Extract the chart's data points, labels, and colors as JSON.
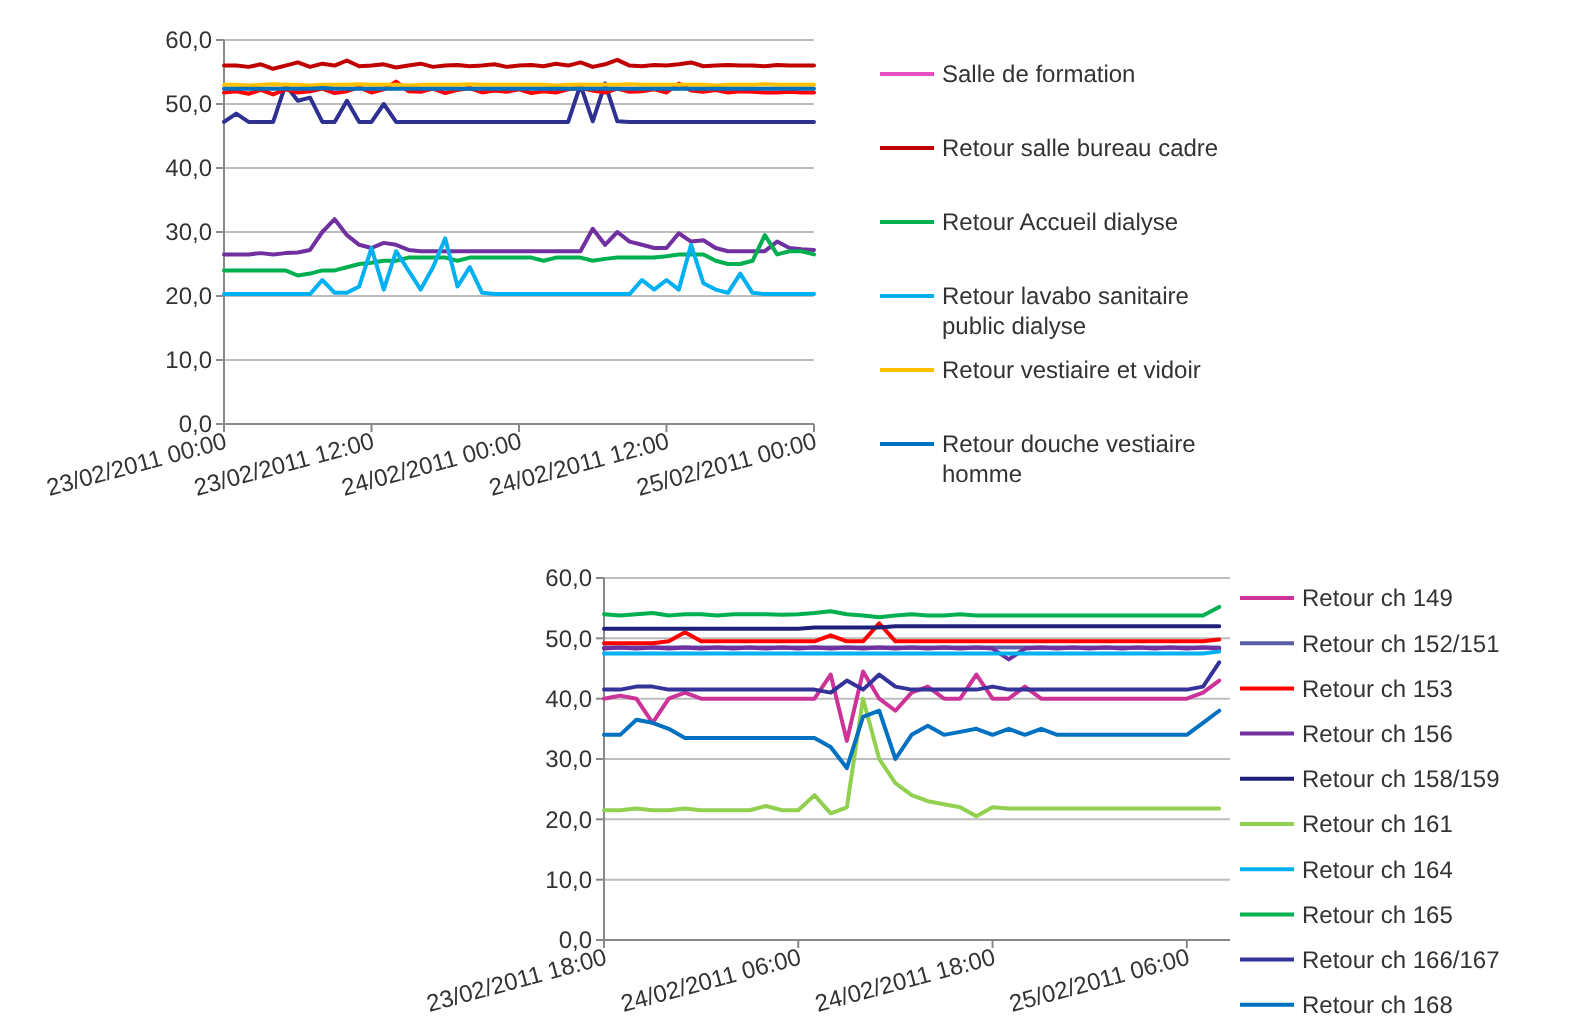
{
  "chart_data": [
    {
      "type": "line",
      "grid": "y",
      "legend": "right",
      "marker": "none",
      "line_style": "solid",
      "xlim": [
        "2011-02-23T00:00",
        "2011-02-25T00:00"
      ],
      "xticks": [
        {
          "value": "2011-02-23T00:00",
          "label": "23/02/2011 00:00"
        },
        {
          "value": "2011-02-23T12:00",
          "label": "23/02/2011 12:00"
        },
        {
          "value": "2011-02-24T00:00",
          "label": "24/02/2011 00:00"
        },
        {
          "value": "2011-02-24T12:00",
          "label": "24/02/2011 12:00"
        },
        {
          "value": "2011-02-25T00:00",
          "label": "25/02/2011 00:00"
        }
      ],
      "ylim": [
        0,
        60
      ],
      "yticks": [
        {
          "value": 0,
          "label": "0,0"
        },
        {
          "value": 10,
          "label": "10,0"
        },
        {
          "value": 20,
          "label": "20,0"
        },
        {
          "value": 30,
          "label": "30,0"
        },
        {
          "value": 40,
          "label": "40,0"
        },
        {
          "value": 50,
          "label": "50,0"
        },
        {
          "value": 60,
          "label": "60,0"
        }
      ],
      "x": [
        "2011-02-23T00:00",
        "2011-02-23T01:00",
        "2011-02-23T02:00",
        "2011-02-23T03:00",
        "2011-02-23T04:00",
        "2011-02-23T05:00",
        "2011-02-23T06:00",
        "2011-02-23T07:00",
        "2011-02-23T08:00",
        "2011-02-23T09:00",
        "2011-02-23T10:00",
        "2011-02-23T11:00",
        "2011-02-23T12:00",
        "2011-02-23T13:00",
        "2011-02-23T14:00",
        "2011-02-23T15:00",
        "2011-02-23T16:00",
        "2011-02-23T17:00",
        "2011-02-23T18:00",
        "2011-02-23T19:00",
        "2011-02-23T20:00",
        "2011-02-23T21:00",
        "2011-02-23T22:00",
        "2011-02-23T23:00",
        "2011-02-24T00:00",
        "2011-02-24T01:00",
        "2011-02-24T02:00",
        "2011-02-24T03:00",
        "2011-02-24T04:00",
        "2011-02-24T05:00",
        "2011-02-24T06:00",
        "2011-02-24T07:00",
        "2011-02-24T08:00",
        "2011-02-24T09:00",
        "2011-02-24T10:00",
        "2011-02-24T11:00",
        "2011-02-24T12:00",
        "2011-02-24T13:00",
        "2011-02-24T14:00",
        "2011-02-24T15:00",
        "2011-02-24T16:00",
        "2011-02-24T17:00",
        "2011-02-24T18:00",
        "2011-02-24T19:00",
        "2011-02-24T20:00",
        "2011-02-24T21:00",
        "2011-02-24T22:00",
        "2011-02-24T23:00",
        "2011-02-25T00:00"
      ],
      "series": [
        {
          "name": "Salle de formation",
          "color": "#e84fc4",
          "values": [
            null,
            null,
            null,
            null,
            null,
            null,
            null,
            null,
            null,
            null,
            null,
            null,
            null,
            null,
            null,
            null,
            null,
            null,
            null,
            null,
            null,
            null,
            null,
            null,
            null,
            null,
            null,
            null,
            null,
            null,
            null,
            null,
            null,
            null,
            null,
            null,
            null,
            null,
            null,
            null,
            null,
            null,
            null,
            null,
            null,
            null,
            null,
            null,
            null
          ]
        },
        {
          "color": "#2e3192",
          "values": [
            47.2,
            48.5,
            47.2,
            47.2,
            47.2,
            53,
            50.5,
            51,
            47.2,
            47.2,
            50.5,
            47.2,
            47.2,
            50,
            47.2,
            47.2,
            47.2,
            47.2,
            47.2,
            47.2,
            47.2,
            47.2,
            47.2,
            47.2,
            47.2,
            47.2,
            47.2,
            47.2,
            47.2,
            53,
            47.3,
            53.2,
            47.3,
            47.2,
            47.2,
            47.2,
            47.2,
            47.2,
            47.2,
            47.2,
            47.2,
            47.2,
            47.2,
            47.2,
            47.2,
            47.2,
            47.2,
            47.2,
            47.2
          ]
        },
        {
          "color": "#7030a0",
          "values": [
            26.5,
            26.5,
            26.5,
            26.7,
            26.5,
            26.7,
            26.8,
            27.2,
            30,
            32,
            29.5,
            28,
            27.5,
            28.3,
            28,
            27.2,
            27,
            27,
            27,
            27,
            27,
            27,
            27,
            27,
            27,
            27,
            27,
            27,
            27,
            27,
            30.5,
            28,
            30,
            28.5,
            28,
            27.5,
            27.5,
            29.8,
            28.5,
            28.7,
            27.5,
            27,
            27,
            27,
            27,
            28.5,
            27.5,
            27.3,
            27.2
          ]
        },
        {
          "color": "#ff0000",
          "values": [
            51.8,
            52,
            51.6,
            52.2,
            51.5,
            52.3,
            51.8,
            52,
            52.4,
            51.7,
            52,
            52.6,
            51.8,
            52.3,
            53.5,
            52,
            51.9,
            52.4,
            51.7,
            52.2,
            52.5,
            51.8,
            52.1,
            51.9,
            52.3,
            51.7,
            52,
            51.8,
            52.3,
            52.5,
            52.1,
            51.8,
            52.4,
            51.9,
            52,
            52.3,
            51.8,
            53.2,
            52.1,
            51.9,
            52.2,
            51.8,
            52,
            51.9,
            51.8,
            51.8,
            51.9,
            51.8,
            51.8
          ]
        },
        {
          "name": "Retour salle bureau cadre",
          "color": "#c00000",
          "values": [
            56,
            56,
            55.8,
            56.2,
            55.5,
            56,
            56.5,
            55.8,
            56.3,
            56,
            56.8,
            55.9,
            56,
            56.2,
            55.7,
            56,
            56.3,
            55.8,
            56,
            56.1,
            55.9,
            56,
            56.2,
            55.8,
            56,
            56.1,
            55.9,
            56.3,
            56,
            56.5,
            55.8,
            56.2,
            56.9,
            56,
            55.9,
            56.1,
            56,
            56.2,
            56.5,
            55.9,
            56,
            56.1,
            56,
            56,
            55.9,
            56.1,
            56,
            56,
            56
          ]
        },
        {
          "name": "Retour Accueil dialyse",
          "color": "#00b050",
          "values": [
            24,
            24,
            24,
            24,
            24,
            24,
            23.2,
            23.5,
            24,
            24,
            24.5,
            25,
            25.2,
            25.5,
            25.5,
            26,
            26,
            26,
            26,
            25.5,
            26,
            26,
            26,
            26,
            26,
            26,
            25.5,
            26,
            26,
            26,
            25.5,
            25.8,
            26,
            26,
            26,
            26,
            26.2,
            26.5,
            26.5,
            26.5,
            25.5,
            25,
            25,
            25.5,
            29.5,
            26.5,
            27,
            27,
            26.5
          ]
        },
        {
          "name": "Retour lavabo sanitaire public dialyse",
          "color": "#00b0f0",
          "values": [
            20.3,
            20.3,
            20.3,
            20.3,
            20.3,
            20.3,
            20.3,
            20.3,
            22.5,
            20.5,
            20.5,
            21.5,
            27.5,
            21,
            27,
            24,
            21,
            24.5,
            29,
            21.5,
            24.5,
            20.5,
            20.3,
            20.3,
            20.3,
            20.3,
            20.3,
            20.3,
            20.3,
            20.3,
            20.3,
            20.3,
            20.3,
            20.3,
            22.5,
            21,
            22.5,
            21,
            28,
            22,
            21,
            20.5,
            23.5,
            20.5,
            20.3,
            20.3,
            20.3,
            20.3,
            20.3
          ]
        },
        {
          "name": "Retour vestiaire et vidoir",
          "color": "#ffc000",
          "values": [
            53,
            53,
            52.9,
            53,
            53.1,
            53,
            53,
            52.9,
            53,
            53,
            53,
            53.1,
            53,
            53,
            53,
            52.9,
            53,
            53,
            53,
            53,
            53.1,
            53,
            53,
            53,
            53,
            53,
            53,
            52.9,
            53,
            53,
            53,
            53,
            53,
            53.1,
            53,
            53,
            53,
            53,
            53,
            53,
            52.9,
            53,
            53,
            53,
            53.1,
            53,
            53,
            53,
            53
          ]
        },
        {
          "name": "Retour douche vestiaire homme",
          "color": "#0070c0",
          "values": [
            52.4,
            52.4,
            52.4,
            52.4,
            52.4,
            52.4,
            52.4,
            52.4,
            52.5,
            52.4,
            52.4,
            52.4,
            52.4,
            52.4,
            52.4,
            52.4,
            52.4,
            52.4,
            52.4,
            52.4,
            52.4,
            52.4,
            52.4,
            52.4,
            52.4,
            52.4,
            52.4,
            52.4,
            52.4,
            52.4,
            52.4,
            52.4,
            52.4,
            52.4,
            52.4,
            52.4,
            52.4,
            52.4,
            52.4,
            52.4,
            52.4,
            52.4,
            52.4,
            52.4,
            52.4,
            52.4,
            52.4,
            52.4,
            52.4
          ]
        }
      ]
    },
    {
      "type": "line",
      "grid": "y",
      "legend": "right",
      "marker": "none",
      "line_style": "solid",
      "xlim": [
        "2011-02-23T18:00",
        "2011-02-25T08:40"
      ],
      "xticks": [
        {
          "value": "2011-02-23T18:00",
          "label": "23/02/2011 18:00"
        },
        {
          "value": "2011-02-24T06:00",
          "label": "24/02/2011 06:00"
        },
        {
          "value": "2011-02-24T18:00",
          "label": "24/02/2011 18:00"
        },
        {
          "value": "2011-02-25T06:00",
          "label": "25/02/2011 06:00"
        }
      ],
      "ylim": [
        0,
        60
      ],
      "yticks": [
        {
          "value": 0,
          "label": "0,0"
        },
        {
          "value": 10,
          "label": "10,0"
        },
        {
          "value": 20,
          "label": "20,0"
        },
        {
          "value": 30,
          "label": "30,0"
        },
        {
          "value": 40,
          "label": "40,0"
        },
        {
          "value": 50,
          "label": "50,0"
        },
        {
          "value": 60,
          "label": "60,0"
        }
      ],
      "x": [
        "2011-02-23T18:00",
        "2011-02-23T19:00",
        "2011-02-23T20:00",
        "2011-02-23T21:00",
        "2011-02-23T22:00",
        "2011-02-23T23:00",
        "2011-02-24T00:00",
        "2011-02-24T01:00",
        "2011-02-24T02:00",
        "2011-02-24T03:00",
        "2011-02-24T04:00",
        "2011-02-24T05:00",
        "2011-02-24T06:00",
        "2011-02-24T07:00",
        "2011-02-24T08:00",
        "2011-02-24T09:00",
        "2011-02-24T10:00",
        "2011-02-24T11:00",
        "2011-02-24T12:00",
        "2011-02-24T13:00",
        "2011-02-24T14:00",
        "2011-02-24T15:00",
        "2011-02-24T16:00",
        "2011-02-24T17:00",
        "2011-02-24T18:00",
        "2011-02-24T19:00",
        "2011-02-24T20:00",
        "2011-02-24T21:00",
        "2011-02-24T22:00",
        "2011-02-24T23:00",
        "2011-02-25T00:00",
        "2011-02-25T01:00",
        "2011-02-25T02:00",
        "2011-02-25T03:00",
        "2011-02-25T04:00",
        "2011-02-25T05:00",
        "2011-02-25T06:00",
        "2011-02-25T07:00",
        "2011-02-25T08:00"
      ],
      "series": [
        {
          "name": "Retour ch 149",
          "color": "#cc3399",
          "values": [
            40,
            40.5,
            40,
            36,
            40,
            41,
            40,
            40,
            40,
            40,
            40,
            40,
            40,
            40,
            44,
            33,
            44.5,
            40,
            38,
            41,
            42,
            40,
            40,
            44,
            40,
            40,
            42,
            40,
            40,
            40,
            40,
            40,
            40,
            40,
            40,
            40,
            40,
            41,
            43
          ]
        },
        {
          "name": "Retour ch 152/151",
          "color": "#5b5ea6",
          "values": [
            48.5,
            48.5,
            48.5,
            48.5,
            48.5,
            48.5,
            48.5,
            48.5,
            48.5,
            48.5,
            48.5,
            48.5,
            48.5,
            48.5,
            48.5,
            48.5,
            48.5,
            48.5,
            48.5,
            48.5,
            48.5,
            48.5,
            48.5,
            48.5,
            48.5,
            48.5,
            48.5,
            48.5,
            48.5,
            48.5,
            48.5,
            48.5,
            48.5,
            48.5,
            48.5,
            48.5,
            48.5,
            48.5,
            48.5
          ]
        },
        {
          "name": "Retour ch 153",
          "color": "#ff0000",
          "values": [
            49.2,
            49.2,
            49.2,
            49.2,
            49.5,
            51,
            49.5,
            49.5,
            49.5,
            49.5,
            49.5,
            49.5,
            49.5,
            49.5,
            50.5,
            49.5,
            49.5,
            52.5,
            49.5,
            49.5,
            49.5,
            49.5,
            49.5,
            49.5,
            49.5,
            49.5,
            49.5,
            49.5,
            49.5,
            49.5,
            49.5,
            49.5,
            49.5,
            49.5,
            49.5,
            49.5,
            49.5,
            49.5,
            49.8
          ]
        },
        {
          "name": "Retour ch 156",
          "color": "#7030a0",
          "values": [
            48.3,
            48.5,
            48.3,
            48.5,
            48.3,
            48.5,
            48.3,
            48.5,
            48.3,
            48.5,
            48.3,
            48.5,
            48.3,
            48.5,
            48.3,
            48.5,
            48.3,
            48.5,
            48.3,
            48.5,
            48.3,
            48.5,
            48.3,
            48.5,
            48.3,
            46.5,
            48.3,
            48.5,
            48.3,
            48.5,
            48.3,
            48.5,
            48.3,
            48.5,
            48.3,
            48.5,
            48.3,
            48.5,
            48.3
          ]
        },
        {
          "name": "Retour ch 158/159",
          "color": "#1f1f7a",
          "values": [
            51.6,
            51.6,
            51.6,
            51.6,
            51.6,
            51.6,
            51.6,
            51.6,
            51.6,
            51.6,
            51.6,
            51.6,
            51.6,
            51.8,
            51.8,
            51.8,
            51.8,
            51.8,
            52,
            52,
            52,
            52,
            52,
            52,
            52,
            52,
            52,
            52,
            52,
            52,
            52,
            52,
            52,
            52,
            52,
            52,
            52,
            52,
            52
          ]
        },
        {
          "name": "Retour ch 161",
          "color": "#92d050",
          "values": [
            21.5,
            21.5,
            21.8,
            21.5,
            21.5,
            21.8,
            21.5,
            21.5,
            21.5,
            21.5,
            22.2,
            21.5,
            21.5,
            24,
            21,
            22,
            40,
            30,
            26,
            24,
            23,
            22.5,
            22,
            20.5,
            22,
            21.8,
            21.8,
            21.8,
            21.8,
            21.8,
            21.8,
            21.8,
            21.8,
            21.8,
            21.8,
            21.8,
            21.8,
            21.8,
            21.8
          ]
        },
        {
          "name": "Retour ch 164",
          "color": "#00b0f0",
          "values": [
            47.5,
            47.5,
            47.5,
            47.5,
            47.5,
            47.5,
            47.5,
            47.5,
            47.5,
            47.5,
            47.5,
            47.5,
            47.5,
            47.5,
            47.5,
            47.5,
            47.5,
            47.5,
            47.5,
            47.5,
            47.5,
            47.5,
            47.5,
            47.5,
            47.5,
            47.5,
            47.5,
            47.5,
            47.5,
            47.5,
            47.5,
            47.5,
            47.5,
            47.5,
            47.5,
            47.5,
            47.5,
            47.5,
            47.8
          ]
        },
        {
          "name": "Retour ch 165",
          "color": "#00b050",
          "values": [
            54,
            53.8,
            54,
            54.2,
            53.8,
            54,
            54,
            53.8,
            54,
            54,
            54,
            53.9,
            54,
            54.2,
            54.5,
            54,
            53.8,
            53.5,
            53.8,
            54,
            53.8,
            53.8,
            54,
            53.8,
            53.8,
            53.8,
            53.8,
            53.8,
            53.8,
            53.8,
            53.8,
            53.8,
            53.8,
            53.8,
            53.8,
            53.8,
            53.8,
            53.8,
            55.2
          ]
        },
        {
          "name": "Retour ch 166/167",
          "color": "#333399",
          "values": [
            41.5,
            41.5,
            42,
            42,
            41.5,
            41.5,
            41.5,
            41.5,
            41.5,
            41.5,
            41.5,
            41.5,
            41.5,
            41.5,
            41,
            43,
            41.5,
            44,
            42,
            41.5,
            41.5,
            41.5,
            41.5,
            41.5,
            42,
            41.5,
            41.5,
            41.5,
            41.5,
            41.5,
            41.5,
            41.5,
            41.5,
            41.5,
            41.5,
            41.5,
            41.5,
            42,
            46
          ]
        },
        {
          "name": "Retour ch 168",
          "color": "#0070c0",
          "values": [
            34,
            34,
            36.5,
            36,
            35,
            33.5,
            33.5,
            33.5,
            33.5,
            33.5,
            33.5,
            33.5,
            33.5,
            33.5,
            32,
            28.5,
            37,
            38,
            30,
            34,
            35.5,
            34,
            34.5,
            35,
            34,
            35,
            34,
            35,
            34,
            34,
            34,
            34,
            34,
            34,
            34,
            34,
            34,
            36,
            38
          ]
        }
      ]
    }
  ]
}
